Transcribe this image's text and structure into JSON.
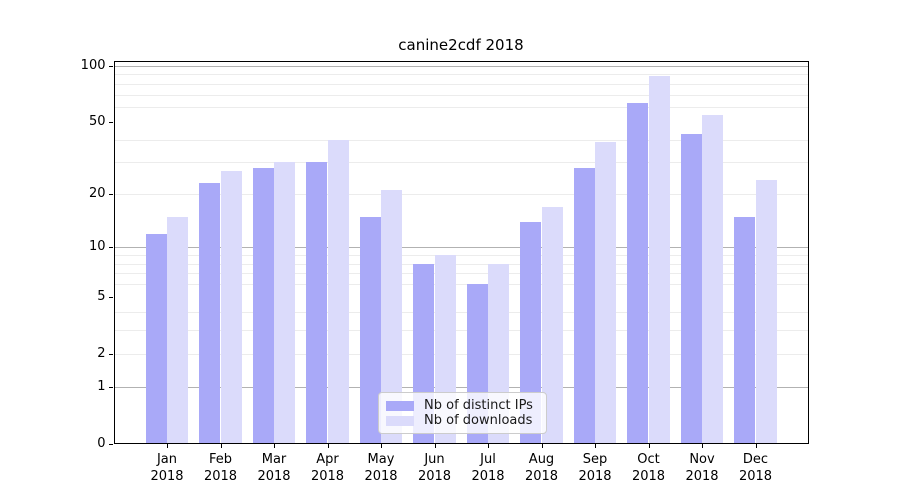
{
  "title": "canine2cdf 2018",
  "legend": {
    "items": [
      {
        "label": "Nb of distinct IPs",
        "color": "#a9a9f8"
      },
      {
        "label": "Nb of downloads",
        "color": "#dbdbfb"
      }
    ]
  },
  "chart_data": {
    "type": "bar",
    "title": "canine2cdf 2018",
    "categories": [
      "Jan",
      "Feb",
      "Mar",
      "Apr",
      "May",
      "Jun",
      "Jul",
      "Aug",
      "Sep",
      "Oct",
      "Nov",
      "Dec"
    ],
    "category_year": "2018",
    "series": [
      {
        "name": "Nb of distinct IPs",
        "color": "#a9a9f8",
        "values": [
          12,
          23,
          28,
          30,
          15,
          8,
          6,
          14,
          28,
          63,
          43,
          15
        ]
      },
      {
        "name": "Nb of downloads",
        "color": "#dbdbfb",
        "values": [
          15,
          27,
          30,
          40,
          21,
          9,
          8,
          17,
          39,
          88,
          54,
          24
        ]
      }
    ],
    "xlabel": "",
    "ylabel": "",
    "yscale": "log1p",
    "ylim": [
      0,
      106
    ],
    "y_ticks": [
      0,
      1,
      2,
      5,
      10,
      20,
      50,
      100
    ],
    "y_major_gridlines": [
      1,
      10,
      100
    ],
    "y_minor_gridlines": [
      2,
      3,
      4,
      6,
      7,
      8,
      9,
      20,
      30,
      40,
      60,
      70,
      80,
      90
    ],
    "grid": true,
    "legend_position": "lower-center",
    "colors": {
      "major_grid": "#b2b2b2",
      "minor_grid": "#ececec",
      "spine": "#000000",
      "background": "#ffffff"
    }
  }
}
